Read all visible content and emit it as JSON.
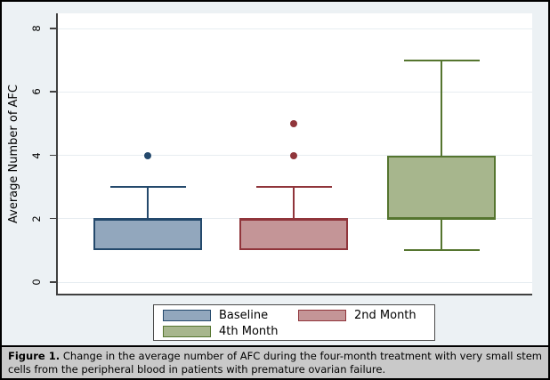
{
  "figure": {
    "caption_label": "Figure 1.",
    "caption_text": "Change in the average number of AFC during the four-month treatment with very small stem cells from the peripheral blood in patients with premature ovarian failure."
  },
  "chart_data": {
    "type": "box",
    "title": "",
    "xlabel": "",
    "ylabel": "Average Number of AFC",
    "ylim": [
      0,
      8
    ],
    "yticks": [
      0,
      2,
      4,
      6,
      8
    ],
    "grid": true,
    "legend_position": "bottom-center",
    "categories": [
      "Baseline",
      "2nd Month",
      "4th Month"
    ],
    "series": [
      {
        "name": "Baseline",
        "q1": 1,
        "median": 2,
        "q3": 2,
        "whisker_low": 1,
        "whisker_high": 3,
        "outliers": [
          4
        ],
        "fill": "#92a7bd",
        "stroke": "#24496c"
      },
      {
        "name": "2nd Month",
        "q1": 1,
        "median": 2,
        "q3": 2,
        "whisker_low": 1,
        "whisker_high": 3,
        "outliers": [
          4,
          5
        ],
        "fill": "#c49597",
        "stroke": "#90353b"
      },
      {
        "name": "4th Month",
        "q1": 2,
        "median": 2,
        "q3": 4,
        "whisker_low": 1,
        "whisker_high": 7,
        "outliers": [],
        "fill": "#a7b68d",
        "stroke": "#55752f"
      }
    ],
    "colors": {
      "background": "#ecf1f4",
      "plot_background": "#ffffff",
      "axis": "#404040",
      "gridline": "#e7edf1",
      "caption_background": "#c9c9c9"
    }
  },
  "legend": {
    "entries": [
      {
        "label": "Baseline"
      },
      {
        "label": "2nd Month"
      },
      {
        "label": "4th Month"
      }
    ]
  }
}
